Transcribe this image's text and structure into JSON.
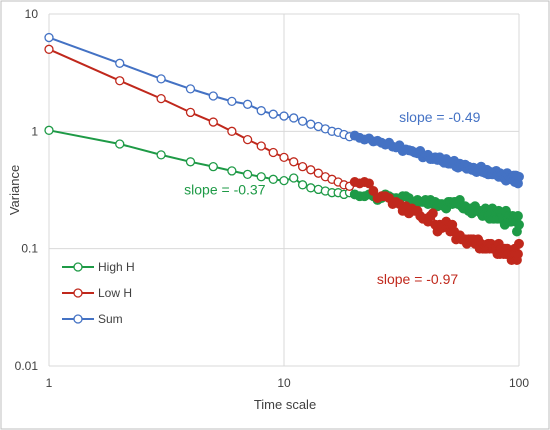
{
  "chart_data": {
    "type": "scatter",
    "title": "",
    "xlabel": "Time scale",
    "ylabel": "Variance",
    "x_scale": "log",
    "y_scale": "log",
    "xlim": [
      1,
      100
    ],
    "ylim": [
      0.01,
      10
    ],
    "x_ticks": [
      "1",
      "10",
      "100"
    ],
    "y_ticks": [
      "0.01",
      "0.1",
      "1",
      "10"
    ],
    "grid": true,
    "legend_position": "bottom-left",
    "series": [
      {
        "name": "High H",
        "color": "#1e9a46",
        "x": [
          1,
          2,
          3,
          4,
          5,
          6,
          7,
          8,
          9,
          10,
          11,
          12,
          13,
          14,
          15,
          16,
          17,
          18,
          19,
          20,
          21,
          22,
          23,
          24,
          25,
          26,
          27,
          28,
          29,
          30,
          31,
          32,
          33,
          34,
          35,
          36,
          37,
          38,
          39,
          40,
          41,
          42,
          43,
          44,
          45,
          46,
          47,
          48,
          49,
          50,
          51,
          52,
          53,
          54,
          55,
          56,
          57,
          58,
          59,
          60,
          61,
          62,
          63,
          64,
          65,
          66,
          67,
          68,
          69,
          70,
          71,
          72,
          73,
          74,
          75,
          76,
          77,
          78,
          79,
          80,
          81,
          82,
          83,
          84,
          85,
          86,
          87,
          88,
          89,
          90,
          91,
          92,
          93,
          94,
          95,
          96,
          97,
          98,
          99,
          100
        ],
        "y": [
          1.02,
          0.78,
          0.63,
          0.55,
          0.5,
          0.46,
          0.43,
          0.41,
          0.39,
          0.38,
          0.4,
          0.35,
          0.33,
          0.32,
          0.31,
          0.3,
          0.3,
          0.29,
          0.3,
          0.29,
          0.28,
          0.28,
          0.29,
          0.28,
          0.26,
          0.27,
          0.29,
          0.28,
          0.27,
          0.27,
          0.26,
          0.28,
          0.28,
          0.27,
          0.25,
          0.24,
          0.26,
          0.25,
          0.25,
          0.26,
          0.24,
          0.26,
          0.24,
          0.25,
          0.23,
          0.24,
          0.24,
          0.23,
          0.22,
          0.25,
          0.25,
          0.24,
          0.25,
          0.25,
          0.24,
          0.26,
          0.23,
          0.22,
          0.23,
          0.22,
          0.21,
          0.22,
          0.2,
          0.21,
          0.23,
          0.21,
          0.21,
          0.21,
          0.2,
          0.19,
          0.2,
          0.22,
          0.19,
          0.19,
          0.18,
          0.2,
          0.22,
          0.18,
          0.2,
          0.2,
          0.18,
          0.21,
          0.18,
          0.2,
          0.19,
          0.18,
          0.16,
          0.21,
          0.19,
          0.18,
          0.19,
          0.17,
          0.17,
          0.19,
          0.18,
          0.18,
          0.17,
          0.14,
          0.19,
          0.16
        ]
      },
      {
        "name": "Low H",
        "color": "#c0281c",
        "x": [
          1,
          2,
          3,
          4,
          5,
          6,
          7,
          8,
          9,
          10,
          11,
          12,
          13,
          14,
          15,
          16,
          17,
          18,
          19,
          20,
          21,
          22,
          23,
          24,
          25,
          26,
          27,
          28,
          29,
          30,
          31,
          32,
          33,
          34,
          35,
          36,
          37,
          38,
          39,
          40,
          41,
          42,
          43,
          44,
          45,
          46,
          47,
          48,
          49,
          50,
          51,
          52,
          53,
          54,
          55,
          56,
          57,
          58,
          59,
          60,
          61,
          62,
          63,
          64,
          65,
          66,
          67,
          68,
          69,
          70,
          71,
          72,
          73,
          74,
          75,
          76,
          77,
          78,
          79,
          80,
          81,
          82,
          83,
          84,
          85,
          86,
          87,
          88,
          89,
          90,
          91,
          92,
          93,
          94,
          95,
          96,
          97,
          98,
          99,
          100
        ],
        "y": [
          5.0,
          2.7,
          1.9,
          1.45,
          1.2,
          1.0,
          0.85,
          0.75,
          0.66,
          0.6,
          0.55,
          0.5,
          0.47,
          0.44,
          0.41,
          0.39,
          0.37,
          0.35,
          0.34,
          0.37,
          0.36,
          0.37,
          0.36,
          0.31,
          0.27,
          0.28,
          0.28,
          0.27,
          0.24,
          0.25,
          0.24,
          0.21,
          0.23,
          0.2,
          0.22,
          0.21,
          0.21,
          0.19,
          0.18,
          0.18,
          0.17,
          0.19,
          0.2,
          0.16,
          0.14,
          0.16,
          0.15,
          0.16,
          0.17,
          0.15,
          0.14,
          0.16,
          0.14,
          0.12,
          0.13,
          0.13,
          0.12,
          0.12,
          0.12,
          0.11,
          0.12,
          0.12,
          0.12,
          0.12,
          0.11,
          0.11,
          0.12,
          0.1,
          0.11,
          0.1,
          0.1,
          0.1,
          0.1,
          0.11,
          0.1,
          0.11,
          0.1,
          0.1,
          0.1,
          0.1,
          0.09,
          0.11,
          0.09,
          0.1,
          0.1,
          0.09,
          0.1,
          0.09,
          0.1,
          0.09,
          0.09,
          0.09,
          0.08,
          0.09,
          0.09,
          0.1,
          0.09,
          0.08,
          0.09,
          0.11
        ]
      },
      {
        "name": "Sum",
        "color": "#4472c4",
        "x": [
          1,
          2,
          3,
          4,
          5,
          6,
          7,
          8,
          9,
          10,
          11,
          12,
          13,
          14,
          15,
          16,
          17,
          18,
          19,
          20,
          21,
          22,
          23,
          24,
          25,
          26,
          27,
          28,
          29,
          30,
          31,
          32,
          33,
          34,
          35,
          36,
          37,
          38,
          39,
          40,
          41,
          42,
          43,
          44,
          45,
          46,
          47,
          48,
          49,
          50,
          51,
          52,
          53,
          54,
          55,
          56,
          57,
          58,
          59,
          60,
          61,
          62,
          63,
          64,
          65,
          66,
          67,
          68,
          69,
          70,
          71,
          72,
          73,
          74,
          75,
          76,
          77,
          78,
          79,
          80,
          81,
          82,
          83,
          84,
          85,
          86,
          87,
          88,
          89,
          90,
          91,
          92,
          93,
          94,
          95,
          96,
          97,
          98,
          99,
          100
        ],
        "y": [
          6.3,
          3.8,
          2.8,
          2.3,
          2.0,
          1.8,
          1.7,
          1.5,
          1.4,
          1.35,
          1.3,
          1.22,
          1.15,
          1.1,
          1.05,
          1.0,
          0.98,
          0.94,
          0.9,
          0.92,
          0.88,
          0.85,
          0.87,
          0.82,
          0.83,
          0.8,
          0.77,
          0.8,
          0.74,
          0.73,
          0.76,
          0.68,
          0.7,
          0.69,
          0.68,
          0.66,
          0.65,
          0.68,
          0.6,
          0.62,
          0.63,
          0.58,
          0.58,
          0.6,
          0.57,
          0.6,
          0.56,
          0.54,
          0.58,
          0.53,
          0.53,
          0.55,
          0.56,
          0.5,
          0.49,
          0.53,
          0.51,
          0.5,
          0.52,
          0.48,
          0.5,
          0.48,
          0.47,
          0.49,
          0.46,
          0.45,
          0.48,
          0.47,
          0.5,
          0.45,
          0.46,
          0.44,
          0.47,
          0.43,
          0.44,
          0.45,
          0.43,
          0.44,
          0.43,
          0.46,
          0.42,
          0.41,
          0.44,
          0.43,
          0.42,
          0.4,
          0.41,
          0.38,
          0.44,
          0.42,
          0.41,
          0.4,
          0.39,
          0.41,
          0.42,
          0.37,
          0.42,
          0.39,
          0.36,
          0.41
        ]
      }
    ],
    "annotations": [
      {
        "text": "slope = -0.49",
        "color": "#4472c4",
        "x": 46,
        "y": 1.2
      },
      {
        "text": "slope = -0.37",
        "color": "#1e9a46",
        "x": 5.6,
        "y": 0.29
      },
      {
        "text": "slope = -0.97",
        "color": "#c0281c",
        "x": 37,
        "y": 0.05
      }
    ]
  }
}
